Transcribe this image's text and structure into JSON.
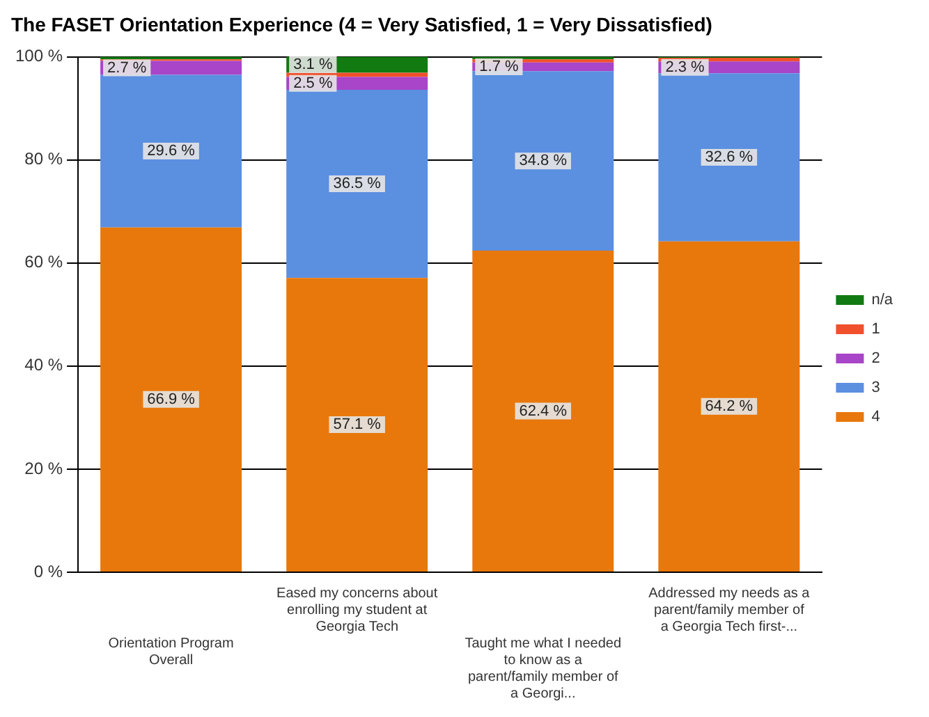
{
  "chart_data": {
    "type": "bar",
    "stacked": true,
    "title": "The FASET Orientation Experience (4 = Very Satisfied, 1 = Very Dissatisfied)",
    "categories": [
      "Orientation Program Overall",
      "Eased my concerns about enrolling my student at Georgia Tech",
      "Taught me what I needed to know as a parent/family member of a Georgi...",
      "Addressed my needs as a parent/family member of a Georgia Tech first-..."
    ],
    "series": [
      {
        "name": "4",
        "color": "#e8780c",
        "values": [
          66.9,
          57.1,
          62.4,
          64.2
        ],
        "value_labels": [
          "66.9 %",
          "57.1 %",
          "62.4 %",
          "64.2 %"
        ]
      },
      {
        "name": "3",
        "color": "#5b8fe0",
        "values": [
          29.6,
          36.5,
          34.8,
          32.6
        ],
        "value_labels": [
          "29.6 %",
          "36.5 %",
          "34.8 %",
          "32.6 %"
        ]
      },
      {
        "name": "2",
        "color": "#a845c8",
        "values": [
          2.7,
          2.5,
          1.7,
          2.3
        ],
        "value_labels": [
          "2.7 %",
          "2.5 %",
          "1.7 %",
          "2.3 %"
        ]
      },
      {
        "name": "1",
        "color": "#f0502c",
        "values": [
          0.3,
          0.8,
          0.6,
          0.7
        ]
      },
      {
        "name": "n/a",
        "color": "#117a11",
        "values": [
          0.5,
          3.1,
          0.5,
          0.2
        ],
        "value_labels": [
          null,
          "3.1 %",
          null,
          null
        ]
      }
    ],
    "ylim": [
      0,
      100
    ],
    "yticks": [
      {
        "value": 0,
        "label": "0 %"
      },
      {
        "value": 20,
        "label": "20 %"
      },
      {
        "value": 40,
        "label": "40 %"
      },
      {
        "value": 60,
        "label": "60 %"
      },
      {
        "value": 80,
        "label": "80 %"
      },
      {
        "value": 100,
        "label": "100 %"
      }
    ],
    "grid": "y",
    "legend": "right"
  }
}
